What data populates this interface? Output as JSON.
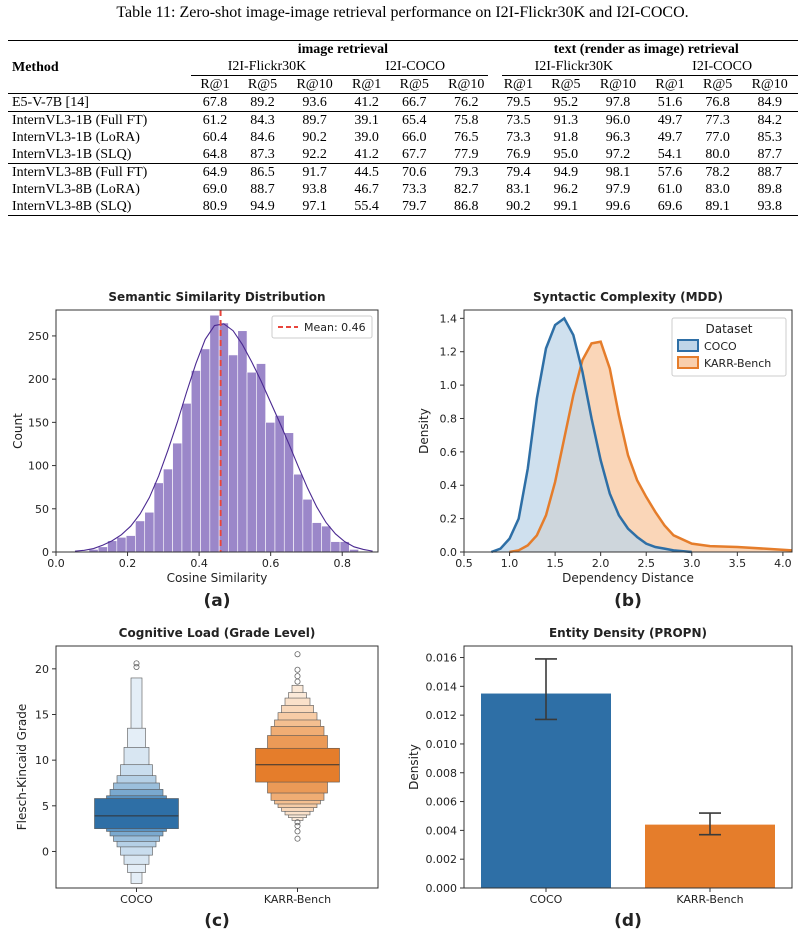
{
  "caption": "Table 11: Zero-shot image-image retrieval performance on I2I-Flickr30K and I2I-COCO.",
  "table": {
    "method_header": "Method",
    "group_headers": [
      "image retrieval",
      "text (render as image) retrieval"
    ],
    "dataset_headers": [
      "I2I-Flickr30K",
      "I2I-COCO",
      "I2I-Flickr30K",
      "I2I-COCO"
    ],
    "metric_headers": [
      "R@1",
      "R@5",
      "R@10",
      "R@1",
      "R@5",
      "R@10",
      "R@1",
      "R@5",
      "R@10",
      "R@1",
      "R@5",
      "R@10"
    ],
    "row_groups": [
      [
        {
          "method": "E5-V-7B [14]",
          "values": [
            "67.8",
            "89.2",
            "93.6",
            "41.2",
            "66.7",
            "76.2",
            "79.5",
            "95.2",
            "97.8",
            "51.6",
            "76.8",
            "84.9"
          ]
        }
      ],
      [
        {
          "method": "InternVL3-1B (Full FT)",
          "values": [
            "61.2",
            "84.3",
            "89.7",
            "39.1",
            "65.4",
            "75.8",
            "73.5",
            "91.3",
            "96.0",
            "49.7",
            "77.3",
            "84.2"
          ]
        },
        {
          "method": "InternVL3-1B (LoRA)",
          "values": [
            "60.4",
            "84.6",
            "90.2",
            "39.0",
            "66.0",
            "76.5",
            "73.3",
            "91.8",
            "96.3",
            "49.7",
            "77.0",
            "85.3"
          ]
        },
        {
          "method": "InternVL3-1B (SLQ)",
          "values": [
            "64.8",
            "87.3",
            "92.2",
            "41.2",
            "67.7",
            "77.9",
            "76.9",
            "95.0",
            "97.2",
            "54.1",
            "80.0",
            "87.7"
          ]
        }
      ],
      [
        {
          "method": "InternVL3-8B (Full FT)",
          "values": [
            "64.9",
            "86.5",
            "91.7",
            "44.5",
            "70.6",
            "79.3",
            "79.4",
            "94.9",
            "98.1",
            "57.6",
            "78.2",
            "88.7"
          ]
        },
        {
          "method": "InternVL3-8B (LoRA)",
          "values": [
            "69.0",
            "88.7",
            "93.8",
            "46.7",
            "73.3",
            "82.7",
            "83.1",
            "96.2",
            "97.9",
            "61.0",
            "83.0",
            "89.8"
          ]
        },
        {
          "method": "InternVL3-8B (SLQ)",
          "values": [
            "80.9",
            "94.9",
            "97.1",
            "55.4",
            "79.7",
            "86.8",
            "90.2",
            "99.1",
            "99.6",
            "69.6",
            "89.1",
            "93.8"
          ]
        }
      ]
    ]
  },
  "colors": {
    "purple": "#9b87c9",
    "kde_line": "#4b2a91",
    "mean_line": "#e8453c",
    "blue": "#2e6fa6",
    "orange": "#e57d2b",
    "blue_fill": "#bfd5e8",
    "orange_fill": "#f9cfac",
    "axis": "#333333"
  },
  "chart_data": [
    {
      "type": "bar",
      "panel": "(a)",
      "title": "Semantic Similarity Distribution",
      "xlabel": "Cosine Similarity",
      "ylabel": "Count",
      "xlim": [
        0.0,
        0.9
      ],
      "ylim": [
        0,
        280
      ],
      "xticks": [
        0.0,
        0.2,
        0.4,
        0.6,
        0.8
      ],
      "yticks": [
        0,
        50,
        100,
        150,
        200,
        250
      ],
      "bin_start": 0.04,
      "bin_width": 0.026,
      "counts": [
        1,
        1,
        3,
        6,
        13,
        17,
        19,
        36,
        46,
        80,
        96,
        126,
        172,
        210,
        235,
        274,
        265,
        228,
        256,
        208,
        218,
        150,
        158,
        138,
        90,
        61,
        34,
        30,
        12,
        12,
        3,
        1,
        1
      ],
      "kde_y": [
        1,
        2,
        4,
        8,
        13,
        20,
        30,
        44,
        63,
        88,
        118,
        150,
        185,
        218,
        246,
        262,
        264,
        256,
        240,
        220,
        198,
        174,
        150,
        125,
        99,
        74,
        52,
        34,
        21,
        12,
        6,
        3,
        1
      ],
      "mean_line": 0.46,
      "legend": [
        "Mean: 0.46"
      ]
    },
    {
      "type": "area",
      "panel": "(b)",
      "title": "Syntactic Complexity (MDD)",
      "xlabel": "Dependency Distance",
      "ylabel": "Density",
      "xlim": [
        0.5,
        4.1
      ],
      "ylim": [
        0,
        1.45
      ],
      "xticks": [
        0.5,
        1.0,
        1.5,
        2.0,
        2.5,
        3.0,
        3.5,
        4.0
      ],
      "yticks": [
        0.0,
        0.2,
        0.4,
        0.6,
        0.8,
        1.0,
        1.2,
        1.4
      ],
      "legend_title": "Dataset",
      "series": [
        {
          "name": "COCO",
          "x": [
            0.8,
            0.9,
            1.0,
            1.1,
            1.2,
            1.3,
            1.4,
            1.5,
            1.6,
            1.7,
            1.8,
            1.9,
            2.0,
            2.1,
            2.2,
            2.3,
            2.4,
            2.5,
            2.6,
            2.7,
            2.8,
            3.0
          ],
          "y": [
            0.0,
            0.02,
            0.08,
            0.2,
            0.5,
            0.92,
            1.22,
            1.36,
            1.4,
            1.3,
            1.08,
            0.8,
            0.55,
            0.35,
            0.22,
            0.14,
            0.09,
            0.05,
            0.03,
            0.02,
            0.01,
            0.0
          ]
        },
        {
          "name": "KARR-Bench",
          "x": [
            1.0,
            1.1,
            1.2,
            1.3,
            1.4,
            1.5,
            1.6,
            1.7,
            1.8,
            1.9,
            2.0,
            2.1,
            2.2,
            2.3,
            2.4,
            2.5,
            2.6,
            2.7,
            2.8,
            3.0,
            3.2,
            3.5,
            3.8,
            4.1
          ],
          "y": [
            0.0,
            0.01,
            0.04,
            0.1,
            0.22,
            0.42,
            0.68,
            0.94,
            1.15,
            1.25,
            1.26,
            1.1,
            0.82,
            0.58,
            0.43,
            0.33,
            0.24,
            0.16,
            0.1,
            0.05,
            0.035,
            0.03,
            0.02,
            0.01
          ]
        }
      ]
    },
    {
      "type": "box",
      "panel": "(c)",
      "title": "Cognitive Load (Grade Level)",
      "xlabel": "",
      "ylabel": "Flesch-Kincaid Grade",
      "ylim": [
        -4,
        22.5
      ],
      "yticks": [
        0,
        5,
        10,
        15,
        20
      ],
      "categories": [
        "COCO",
        "KARR-Bench"
      ],
      "boxes": [
        {
          "q1": 2.5,
          "median": 3.9,
          "q3": 5.8,
          "levels": [
            [
              2.2,
              6.1
            ],
            [
              1.7,
              6.8
            ],
            [
              1.1,
              7.5
            ],
            [
              0.5,
              8.3
            ],
            [
              -0.4,
              9.5
            ],
            [
              -1.4,
              11.4
            ],
            [
              -2.3,
              13.5
            ],
            [
              -3.5,
              19.0
            ]
          ],
          "outliers": [
            20.2,
            20.6
          ]
        },
        {
          "q1": 7.6,
          "median": 9.5,
          "q3": 11.3,
          "levels": [
            [
              6.4,
              12.7
            ],
            [
              5.6,
              13.7
            ],
            [
              5.2,
              14.4
            ],
            [
              4.8,
              15.2
            ],
            [
              4.4,
              16.0
            ],
            [
              4.0,
              16.8
            ],
            [
              3.7,
              17.4
            ],
            [
              3.4,
              18.2
            ]
          ],
          "outliers": [
            1.4,
            2.2,
            2.8,
            3.2,
            18.6,
            19.2,
            19.9,
            21.6
          ]
        }
      ]
    },
    {
      "type": "bar",
      "panel": "(d)",
      "title": "Entity Density (PROPN)",
      "xlabel": "",
      "ylabel": "Density",
      "ylim": [
        0,
        0.0168
      ],
      "yticks": [
        0.0,
        0.002,
        0.004,
        0.006,
        0.008,
        0.01,
        0.012,
        0.014,
        0.016
      ],
      "ytick_labels": [
        "0.000",
        "0.002",
        "0.004",
        "0.006",
        "0.008",
        "0.010",
        "0.012",
        "0.014",
        "0.016"
      ],
      "categories": [
        "COCO",
        "KARR-Bench"
      ],
      "values": [
        0.0135,
        0.0044
      ],
      "error_low": [
        0.0117,
        0.0037
      ],
      "error_high": [
        0.0159,
        0.0052
      ]
    }
  ]
}
